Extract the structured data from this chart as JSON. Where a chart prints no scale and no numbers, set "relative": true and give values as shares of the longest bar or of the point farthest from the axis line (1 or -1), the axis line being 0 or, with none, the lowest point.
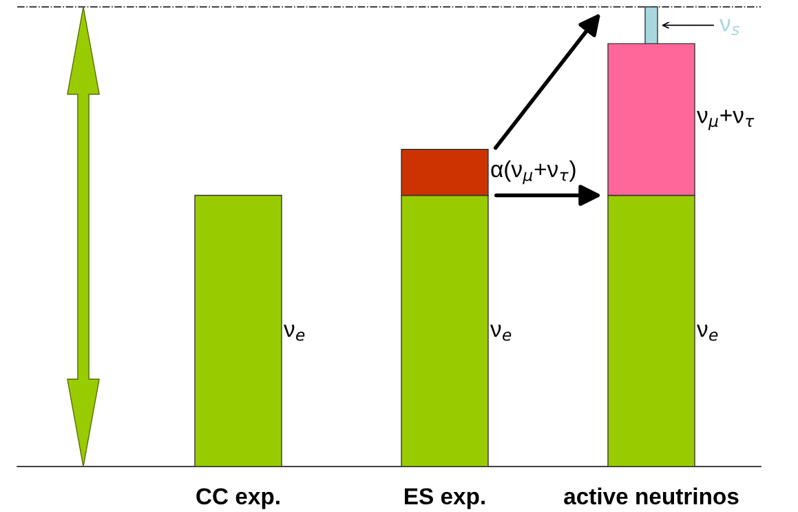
{
  "chart_data": {
    "type": "bar",
    "stacked": true,
    "relative": true,
    "categories": [
      "CC exp.",
      "ES exp.",
      "active neutrinos"
    ],
    "series": [
      {
        "name": "ν$_{e}$",
        "color": "#99cc00",
        "values": [
          0.59,
          0.59,
          0.59
        ]
      },
      {
        "name": "α(ν$_{μ}$+ν$_{τ}$)",
        "color": "#cc3300",
        "values": [
          null,
          0.1,
          null
        ]
      },
      {
        "name": "ν$_{μ}$+ν$_{τ}$",
        "color": "#ff6699",
        "values": [
          null,
          null,
          0.33
        ]
      },
      {
        "name": "ν$_{s}$",
        "color": "#a8d8df",
        "values": [
          null,
          null,
          0.08
        ]
      }
    ],
    "ref_lines": [
      {
        "axis": "y",
        "value": 1.0,
        "color": "#000000",
        "line_style": "dashdot"
      }
    ],
    "legend": false,
    "grid": false
  }
}
